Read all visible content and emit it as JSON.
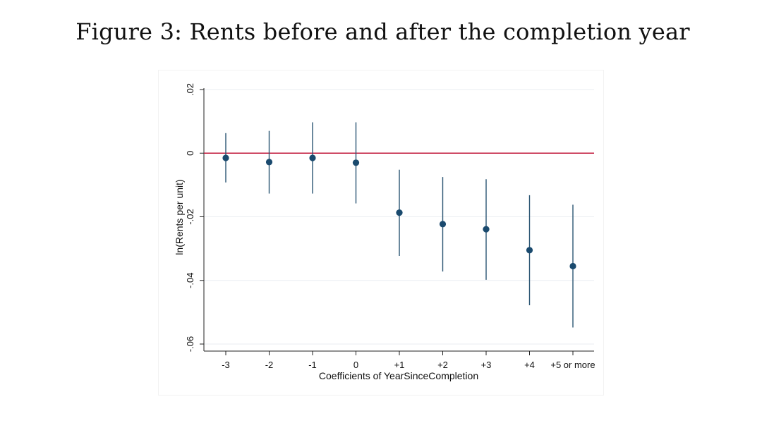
{
  "figure": {
    "title": "Figure 3: Rents before and after the completion year"
  },
  "chart_data": {
    "type": "scatter",
    "subtype": "coefficient-plot-with-confidence-intervals",
    "title": "",
    "xlabel": "Coefficients of YearSinceCompletion",
    "ylabel": "ln(Rents per unit)",
    "categories": [
      "-3",
      "-2",
      "-1",
      "0",
      "+1",
      "+2",
      "+3",
      "+4",
      "+5 or more"
    ],
    "series": [
      {
        "values": [
          -0.0015,
          -0.0028,
          -0.0015,
          -0.003,
          -0.0187,
          -0.0223,
          -0.0239,
          -0.0305,
          -0.0355
        ],
        "ci_lower": [
          -0.0092,
          -0.0127,
          -0.0127,
          -0.0158,
          -0.0323,
          -0.0372,
          -0.0398,
          -0.0478,
          -0.0548
        ],
        "ci_upper": [
          0.0063,
          0.007,
          0.0097,
          0.0097,
          -0.0052,
          -0.0075,
          -0.0082,
          -0.0132,
          -0.0162
        ]
      }
    ],
    "reference_line": {
      "y": 0,
      "color": "#c0173a"
    },
    "ylim": [
      -0.06,
      0.02
    ],
    "yticks": [
      -0.06,
      -0.04,
      -0.02,
      0,
      0.02
    ],
    "ytick_labels": [
      "-.06",
      "-.04",
      "-.02",
      "0",
      ".02"
    ],
    "grid": true,
    "legend": "none",
    "colors": {
      "marker": "#1a4a6e",
      "ci": "#2b5573",
      "grid": "#eaeef2",
      "axis": "#222222"
    }
  }
}
